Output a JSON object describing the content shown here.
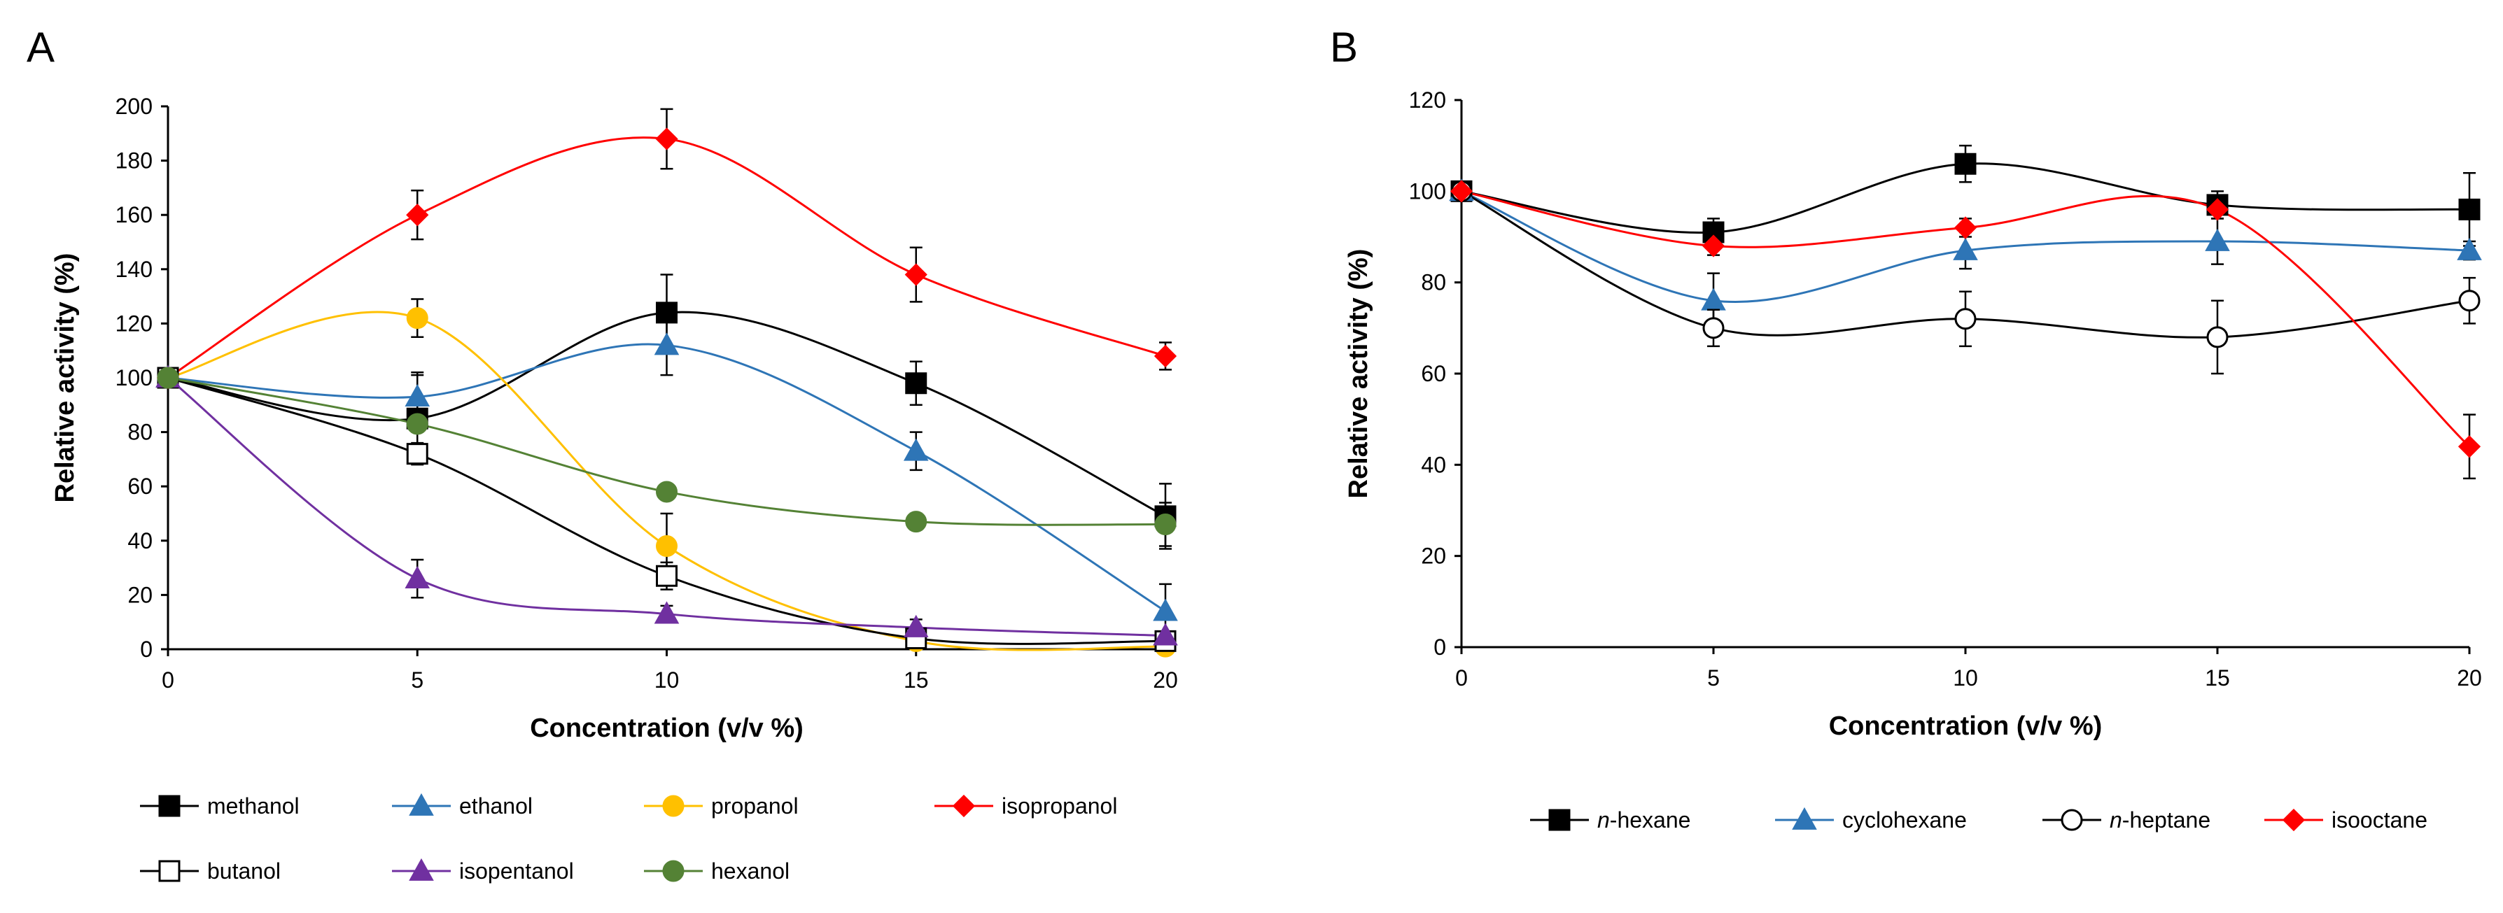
{
  "chart_data": [
    {
      "panel": "A",
      "type": "line",
      "xlabel": "Concentration (v/v %)",
      "ylabel": "Relative activity (%)",
      "xlim": [
        0,
        20
      ],
      "ylim": [
        0,
        200
      ],
      "xticks": [
        "0",
        "5",
        "10",
        "15",
        "20"
      ],
      "yticks": [
        "0",
        "20",
        "40",
        "60",
        "80",
        "100",
        "120",
        "140",
        "160",
        "180",
        "200"
      ],
      "x": [
        0,
        5,
        10,
        15,
        20
      ],
      "series": [
        {
          "name": "methanol",
          "marker": "square",
          "filled": true,
          "color": "#000000",
          "values": [
            100,
            85,
            124,
            98,
            49
          ],
          "errors": [
            0,
            16,
            14,
            8,
            12
          ]
        },
        {
          "name": "ethanol",
          "marker": "triangle",
          "filled": true,
          "color": "#2e75b6",
          "values": [
            100,
            93,
            112,
            73,
            14
          ],
          "errors": [
            0,
            9,
            11,
            7,
            10
          ]
        },
        {
          "name": "propanol",
          "marker": "circle",
          "filled": true,
          "color": "#ffc000",
          "values": [
            100,
            122,
            38,
            3,
            1
          ],
          "errors": [
            0,
            7,
            12,
            0,
            0
          ]
        },
        {
          "name": "isopropanol",
          "marker": "diamond",
          "filled": true,
          "color": "#ff0000",
          "values": [
            100,
            160,
            188,
            138,
            108
          ],
          "errors": [
            0,
            9,
            11,
            10,
            5
          ]
        },
        {
          "name": "butanol",
          "marker": "square",
          "filled": false,
          "color": "#000000",
          "values": [
            100,
            72,
            27,
            4,
            3
          ],
          "errors": [
            0,
            4,
            5,
            0,
            0
          ]
        },
        {
          "name": "isopentanol",
          "marker": "triangle",
          "filled": true,
          "color": "#7030a0",
          "values": [
            100,
            26,
            13,
            8,
            5
          ],
          "errors": [
            0,
            7,
            3,
            3,
            0
          ]
        },
        {
          "name": "hexanol",
          "marker": "circle",
          "filled": true,
          "color": "#548235",
          "values": [
            100,
            83,
            58,
            47,
            46
          ],
          "errors": [
            0,
            0,
            0,
            3,
            8
          ]
        }
      ]
    },
    {
      "panel": "B",
      "type": "line",
      "xlabel": "Concentration (v/v %)",
      "ylabel": "Relative activity (%)",
      "xlim": [
        0,
        20
      ],
      "ylim": [
        0,
        120
      ],
      "xticks": [
        "0",
        "5",
        "10",
        "15",
        "20"
      ],
      "yticks": [
        "0",
        "20",
        "40",
        "60",
        "80",
        "100",
        "120"
      ],
      "x": [
        0,
        5,
        10,
        15,
        20
      ],
      "series": [
        {
          "name": "n-hexane",
          "label_prefix": "n",
          "label_rest": "-hexane",
          "marker": "square",
          "filled": true,
          "color": "#000000",
          "values": [
            100,
            91,
            106,
            97,
            96
          ],
          "errors": [
            0,
            3,
            4,
            3,
            8
          ]
        },
        {
          "name": "cyclohexane",
          "label_prefix": "",
          "label_rest": "cyclohexane",
          "marker": "triangle",
          "filled": true,
          "color": "#2e75b6",
          "values": [
            100,
            76,
            87,
            89,
            87
          ],
          "errors": [
            0,
            6,
            4,
            5,
            2
          ]
        },
        {
          "name": "n-heptane",
          "label_prefix": "n",
          "label_rest": "-heptane",
          "marker": "circle",
          "filled": false,
          "color": "#000000",
          "values": [
            100,
            70,
            72,
            68,
            76
          ],
          "errors": [
            0,
            4,
            6,
            8,
            5
          ]
        },
        {
          "name": "isooctane",
          "label_prefix": "",
          "label_rest": "isooctane",
          "marker": "diamond",
          "filled": true,
          "color": "#ff0000",
          "values": [
            100,
            88,
            92,
            96,
            44
          ],
          "errors": [
            0,
            2,
            2,
            2,
            7
          ]
        }
      ]
    }
  ]
}
